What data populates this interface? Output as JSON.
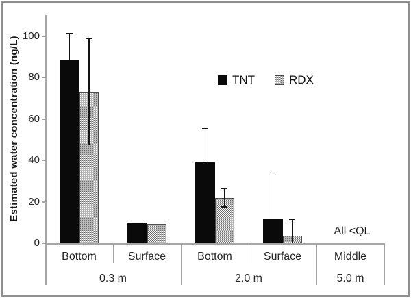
{
  "figure": {
    "description": "Bar chart of estimated explosive compound concentrations in water by sampling position and water depth"
  },
  "colors": {
    "bar_tnt": "#0a0a0a",
    "rdx_pattern_dot": "#6f6f6f",
    "rdx_border": "#4d4d4d",
    "axis": "#a6a6a6",
    "text": "#262626",
    "frame": "#8f8f8f"
  },
  "chart_data": {
    "type": "bar",
    "title": "",
    "xlabel": "",
    "ylabel": "Estimated water concentration (ng/L)",
    "ylim": [
      0,
      110
    ],
    "yticks": [
      0,
      20,
      40,
      60,
      80,
      100
    ],
    "grid": false,
    "legend": [
      "TNT",
      "RDX"
    ],
    "legend_position": "upper-center-inside",
    "annotation": "All <QL",
    "annotation_group": "Middle / 5.0 m",
    "groups": [
      {
        "sublabel": "Bottom",
        "depth": "0.3 m",
        "bars": [
          {
            "series": "TNT",
            "value": 88.5,
            "err_high": 101.5
          },
          {
            "series": "RDX",
            "value": 72.8,
            "err_low": 47.5,
            "err_high": 99
          }
        ]
      },
      {
        "sublabel": "Surface",
        "depth": "0.3 m",
        "bars": [
          {
            "series": "TNT",
            "value": 9.5
          },
          {
            "series": "RDX",
            "value": 9.2
          }
        ]
      },
      {
        "sublabel": "Bottom",
        "depth": "2.0 m",
        "bars": [
          {
            "series": "TNT",
            "value": 39,
            "err_high": 55.5
          },
          {
            "series": "RDX",
            "value": 22,
            "err_low": 17.5,
            "err_high": 26.5
          }
        ]
      },
      {
        "sublabel": "Surface",
        "depth": "2.0 m",
        "bars": [
          {
            "series": "TNT",
            "value": 11.5,
            "err_high": 35
          },
          {
            "series": "RDX",
            "value": 3.5,
            "err_low": 0,
            "err_high": 11.5
          }
        ]
      },
      {
        "sublabel": "Middle",
        "depth": "5.0 m",
        "bars": []
      }
    ],
    "depth_spans": [
      {
        "label": "0.3 m",
        "cells": 2
      },
      {
        "label": "2.0 m",
        "cells": 2
      },
      {
        "label": "5.0 m",
        "cells": 1
      }
    ]
  }
}
